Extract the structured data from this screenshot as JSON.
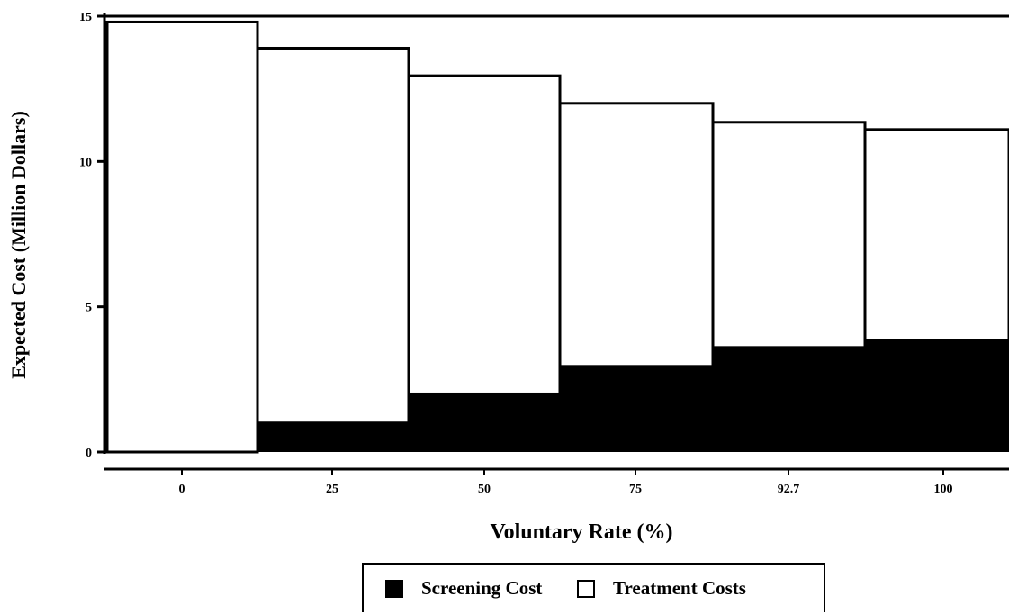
{
  "chart_data": {
    "type": "bar",
    "stacked": true,
    "categories": [
      "0",
      "25",
      "50",
      "75",
      "92.7",
      "100"
    ],
    "series": [
      {
        "name": "Screening Cost",
        "values": [
          0,
          1.0,
          2.0,
          2.95,
          3.6,
          3.85
        ]
      },
      {
        "name": "Treatment Costs",
        "values": [
          14.8,
          12.9,
          10.95,
          9.05,
          7.75,
          7.25
        ]
      }
    ],
    "totals": [
      14.8,
      13.9,
      12.95,
      12.0,
      11.35,
      11.1
    ],
    "xlabel": "Voluntary Rate (%)",
    "ylabel": "Expected Cost (Million Dollars)",
    "ylim": [
      0,
      15
    ],
    "yticks": [
      0,
      5,
      10,
      15
    ],
    "grid": false,
    "legend_position": "bottom"
  },
  "colors": {
    "screening": "#000000",
    "treatment": "#ffffff",
    "axis": "#000000"
  }
}
